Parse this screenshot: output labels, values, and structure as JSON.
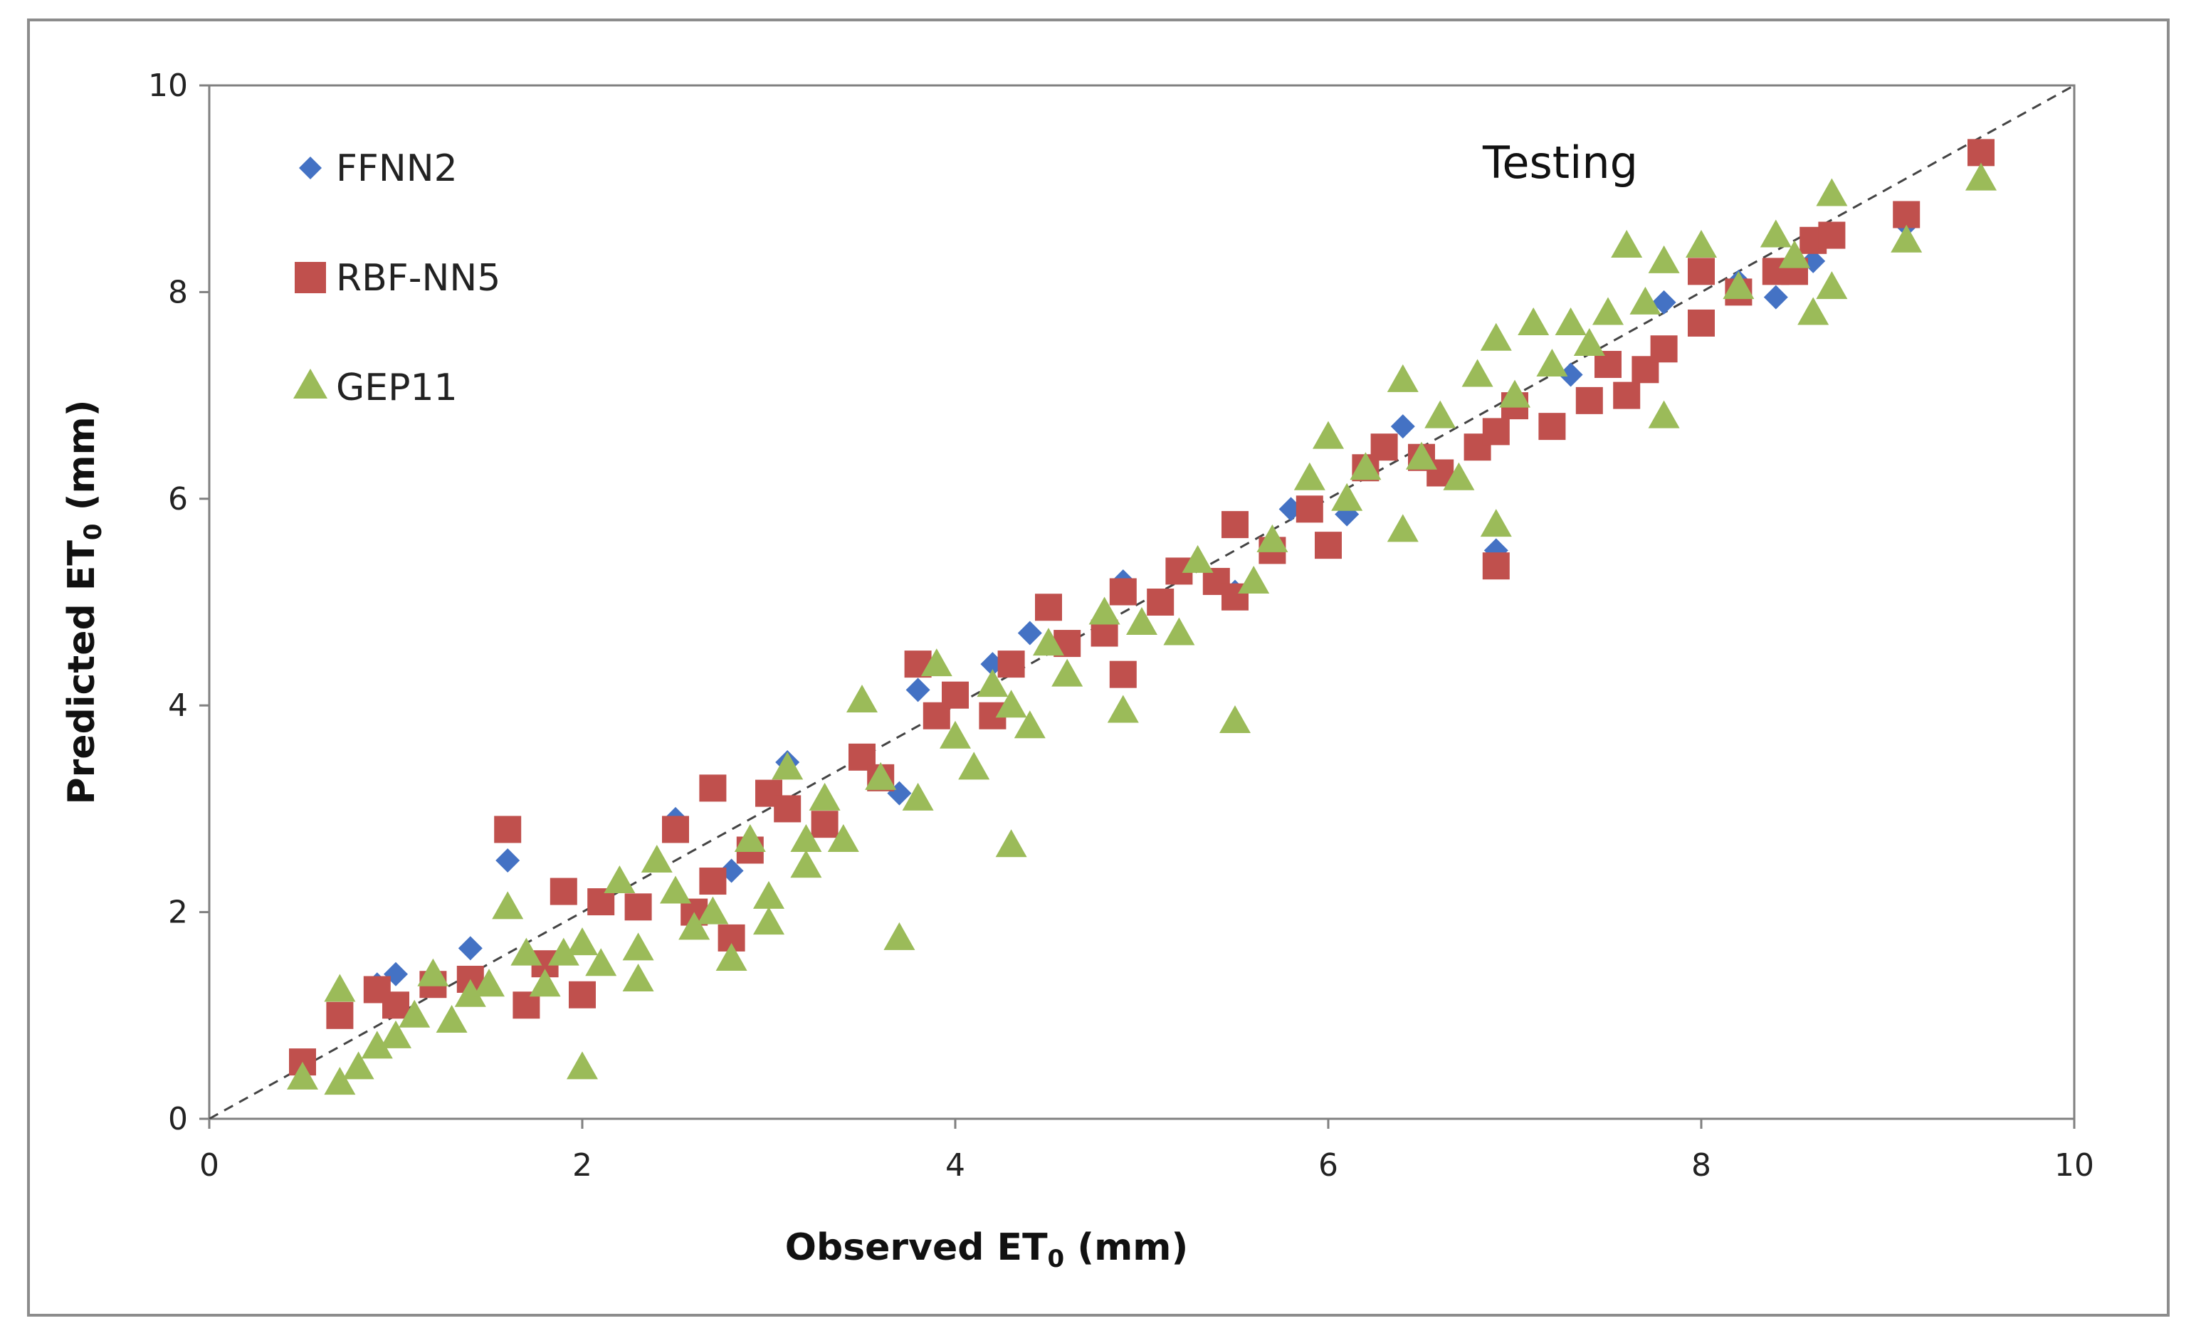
{
  "chart_data": {
    "type": "scatter",
    "title": "",
    "annotation": "Testing",
    "xlabel": {
      "main": "Observed ET",
      "sub": "0",
      "unit": " (mm)"
    },
    "ylabel": {
      "main": "Predicted ET",
      "sub": "0",
      "unit": " (mm)"
    },
    "xlim": [
      0,
      10
    ],
    "ylim": [
      0,
      10
    ],
    "xticks": [
      "0",
      "2",
      "4",
      "6",
      "8",
      "10"
    ],
    "yticks": [
      "0",
      "2",
      "4",
      "6",
      "8",
      "10"
    ],
    "reference_line": {
      "type": "1:1",
      "style": "dashed"
    },
    "legend_position": "top-left",
    "series": [
      {
        "name": "FFNN2",
        "marker": "diamond",
        "color": "#4472C4",
        "points": [
          [
            0.9,
            1.3
          ],
          [
            1.0,
            1.4
          ],
          [
            1.4,
            1.65
          ],
          [
            1.6,
            2.5
          ],
          [
            2.5,
            2.9
          ],
          [
            2.8,
            2.4
          ],
          [
            3.1,
            3.45
          ],
          [
            3.7,
            3.15
          ],
          [
            3.8,
            4.15
          ],
          [
            4.2,
            4.4
          ],
          [
            4.4,
            4.7
          ],
          [
            4.9,
            5.2
          ],
          [
            5.5,
            5.1
          ],
          [
            5.8,
            5.9
          ],
          [
            6.1,
            5.85
          ],
          [
            6.4,
            6.7
          ],
          [
            6.9,
            5.5
          ],
          [
            7.3,
            7.2
          ],
          [
            7.8,
            7.9
          ],
          [
            8.2,
            8.1
          ],
          [
            8.4,
            7.95
          ],
          [
            8.6,
            8.3
          ],
          [
            9.1,
            8.65
          ],
          [
            9.5,
            9.35
          ]
        ]
      },
      {
        "name": "RBF-NN5",
        "marker": "square",
        "color": "#C0504D",
        "points": [
          [
            0.5,
            0.55
          ],
          [
            0.7,
            1.0
          ],
          [
            0.9,
            1.25
          ],
          [
            1.0,
            1.1
          ],
          [
            1.2,
            1.3
          ],
          [
            1.4,
            1.35
          ],
          [
            1.6,
            2.8
          ],
          [
            1.7,
            1.1
          ],
          [
            1.8,
            1.5
          ],
          [
            1.9,
            2.2
          ],
          [
            2.0,
            1.2
          ],
          [
            2.1,
            2.1
          ],
          [
            2.3,
            2.05
          ],
          [
            2.5,
            2.8
          ],
          [
            2.6,
            2.0
          ],
          [
            2.7,
            3.2
          ],
          [
            2.7,
            2.3
          ],
          [
            2.8,
            1.75
          ],
          [
            2.9,
            2.6
          ],
          [
            3.0,
            3.15
          ],
          [
            3.1,
            3.0
          ],
          [
            3.3,
            2.85
          ],
          [
            3.5,
            3.5
          ],
          [
            3.6,
            3.3
          ],
          [
            3.8,
            4.4
          ],
          [
            3.9,
            3.9
          ],
          [
            4.0,
            4.1
          ],
          [
            4.2,
            3.9
          ],
          [
            4.3,
            4.4
          ],
          [
            4.5,
            4.95
          ],
          [
            4.6,
            4.6
          ],
          [
            4.8,
            4.7
          ],
          [
            4.9,
            5.1
          ],
          [
            4.9,
            4.3
          ],
          [
            5.1,
            5.0
          ],
          [
            5.2,
            5.3
          ],
          [
            5.4,
            5.2
          ],
          [
            5.5,
            5.75
          ],
          [
            5.5,
            5.05
          ],
          [
            5.7,
            5.5
          ],
          [
            5.9,
            5.9
          ],
          [
            6.0,
            5.55
          ],
          [
            6.2,
            6.3
          ],
          [
            6.3,
            6.5
          ],
          [
            6.5,
            6.4
          ],
          [
            6.6,
            6.25
          ],
          [
            6.8,
            6.5
          ],
          [
            6.9,
            6.65
          ],
          [
            6.9,
            5.35
          ],
          [
            7.0,
            6.9
          ],
          [
            7.2,
            6.7
          ],
          [
            7.4,
            6.95
          ],
          [
            7.5,
            7.3
          ],
          [
            7.6,
            7.0
          ],
          [
            7.7,
            7.25
          ],
          [
            7.8,
            7.45
          ],
          [
            8.0,
            7.7
          ],
          [
            8.0,
            8.2
          ],
          [
            8.2,
            8.0
          ],
          [
            8.4,
            8.2
          ],
          [
            8.5,
            8.2
          ],
          [
            8.6,
            8.5
          ],
          [
            8.7,
            8.55
          ],
          [
            9.1,
            8.75
          ],
          [
            9.5,
            9.35
          ]
        ]
      },
      {
        "name": "GEP11",
        "marker": "triangle",
        "color": "#9BBB59",
        "points": [
          [
            0.5,
            0.4
          ],
          [
            0.7,
            0.35
          ],
          [
            0.7,
            1.25
          ],
          [
            0.8,
            0.5
          ],
          [
            0.9,
            0.7
          ],
          [
            1.0,
            0.8
          ],
          [
            1.1,
            1.0
          ],
          [
            1.2,
            1.4
          ],
          [
            1.3,
            0.95
          ],
          [
            1.4,
            1.2
          ],
          [
            1.5,
            1.3
          ],
          [
            1.6,
            2.05
          ],
          [
            1.7,
            1.6
          ],
          [
            1.8,
            1.3
          ],
          [
            1.9,
            1.6
          ],
          [
            2.0,
            0.5
          ],
          [
            2.0,
            1.7
          ],
          [
            2.1,
            1.5
          ],
          [
            2.2,
            2.3
          ],
          [
            2.3,
            1.35
          ],
          [
            2.3,
            1.65
          ],
          [
            2.4,
            2.5
          ],
          [
            2.5,
            2.2
          ],
          [
            2.6,
            1.85
          ],
          [
            2.7,
            2.0
          ],
          [
            2.8,
            1.55
          ],
          [
            2.9,
            2.7
          ],
          [
            3.0,
            1.9
          ],
          [
            3.0,
            2.15
          ],
          [
            3.1,
            3.4
          ],
          [
            3.2,
            2.45
          ],
          [
            3.2,
            2.7
          ],
          [
            3.3,
            3.1
          ],
          [
            3.4,
            2.7
          ],
          [
            3.5,
            4.05
          ],
          [
            3.6,
            3.3
          ],
          [
            3.7,
            1.75
          ],
          [
            3.8,
            3.1
          ],
          [
            3.9,
            4.4
          ],
          [
            4.0,
            3.7
          ],
          [
            4.1,
            3.4
          ],
          [
            4.2,
            4.2
          ],
          [
            4.3,
            2.65
          ],
          [
            4.3,
            4.0
          ],
          [
            4.4,
            3.8
          ],
          [
            4.5,
            4.6
          ],
          [
            4.6,
            4.3
          ],
          [
            4.8,
            4.9
          ],
          [
            4.9,
            3.95
          ],
          [
            5.0,
            4.8
          ],
          [
            5.2,
            4.7
          ],
          [
            5.3,
            5.4
          ],
          [
            5.5,
            3.85
          ],
          [
            5.6,
            5.2
          ],
          [
            5.7,
            5.6
          ],
          [
            5.9,
            6.2
          ],
          [
            6.0,
            6.6
          ],
          [
            6.1,
            6.0
          ],
          [
            6.2,
            6.3
          ],
          [
            6.4,
            5.7
          ],
          [
            6.4,
            7.15
          ],
          [
            6.5,
            6.4
          ],
          [
            6.6,
            6.8
          ],
          [
            6.7,
            6.2
          ],
          [
            6.8,
            7.2
          ],
          [
            6.9,
            5.75
          ],
          [
            6.9,
            7.55
          ],
          [
            7.0,
            7.0
          ],
          [
            7.1,
            7.7
          ],
          [
            7.2,
            7.3
          ],
          [
            7.3,
            7.7
          ],
          [
            7.4,
            7.5
          ],
          [
            7.5,
            7.8
          ],
          [
            7.6,
            8.45
          ],
          [
            7.7,
            7.9
          ],
          [
            7.8,
            8.3
          ],
          [
            7.8,
            6.8
          ],
          [
            8.0,
            8.45
          ],
          [
            8.2,
            8.05
          ],
          [
            8.4,
            8.55
          ],
          [
            8.5,
            8.35
          ],
          [
            8.6,
            7.8
          ],
          [
            8.7,
            8.05
          ],
          [
            8.7,
            8.95
          ],
          [
            9.1,
            8.5
          ],
          [
            9.5,
            9.1
          ]
        ]
      }
    ]
  }
}
